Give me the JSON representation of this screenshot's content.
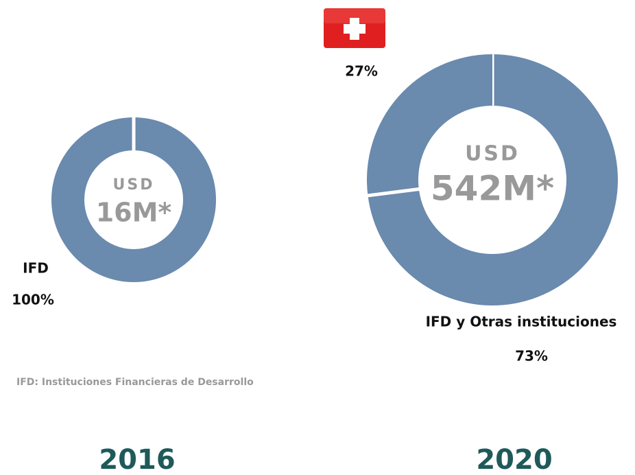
{
  "chart_data": [
    {
      "type": "donut",
      "caption": "2016",
      "center_top": "USD",
      "center_value": "16M*",
      "categories": [
        "IFD"
      ],
      "values": [
        100
      ],
      "value_labels": [
        "100%"
      ],
      "colors": [
        "#6a8aae"
      ]
    },
    {
      "type": "donut",
      "caption": "2020",
      "center_top": "USD",
      "center_value": "542M*",
      "categories": [
        "IFD y Otras instituciones",
        null
      ],
      "values": [
        73,
        27
      ],
      "value_labels": [
        "73%",
        "27%"
      ],
      "colors": [
        "#6a8aae",
        "#6a8aae"
      ]
    }
  ],
  "footnote": "IFD: Instituciones Financieras de Desarrollo"
}
